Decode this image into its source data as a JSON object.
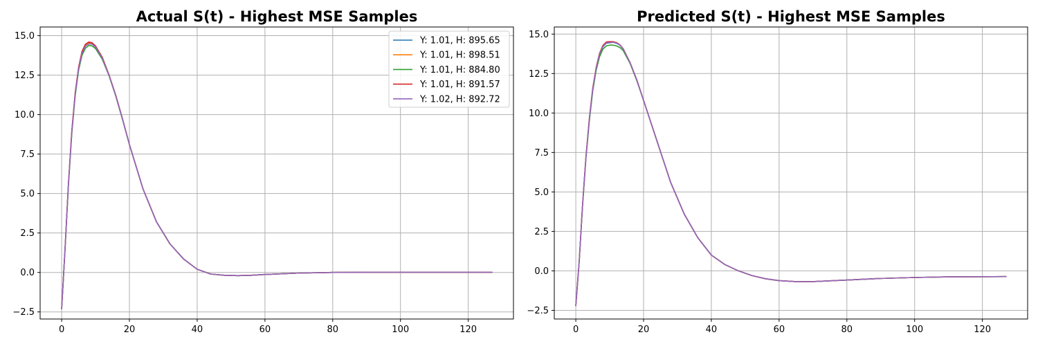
{
  "chart_data": [
    {
      "type": "line",
      "title": "Actual S(t) - Highest MSE Samples",
      "xlabel": "",
      "ylabel": "",
      "xlim": [
        -6.35,
        133.35
      ],
      "ylim": [
        -2.95,
        15.55
      ],
      "xticks": [
        0,
        20,
        40,
        60,
        80,
        100,
        120
      ],
      "xtick_labels": [
        "0",
        "20",
        "40",
        "60",
        "80",
        "100",
        "120"
      ],
      "yticks": [
        -2.5,
        0.0,
        2.5,
        5.0,
        7.5,
        10.0,
        12.5,
        15.0
      ],
      "ytick_labels": [
        "−2.5",
        "0.0",
        "2.5",
        "5.0",
        "7.5",
        "10.0",
        "12.5",
        "15.0"
      ],
      "grid": true,
      "legend_location": "top-right",
      "series": [
        {
          "name": "Y: 1.01, H: 895.65",
          "color": "#1f77b4",
          "x": [
            0,
            1,
            2,
            3,
            4,
            5,
            6,
            7,
            8,
            9,
            10,
            12,
            14,
            16,
            18,
            20,
            24,
            28,
            32,
            36,
            40,
            44,
            48,
            52,
            56,
            60,
            70,
            80,
            90,
            100,
            110,
            120,
            127
          ],
          "y": [
            -2.3,
            1.5,
            5.6,
            8.9,
            11.3,
            12.9,
            13.9,
            14.35,
            14.5,
            14.48,
            14.3,
            13.6,
            12.5,
            11.2,
            9.7,
            8.1,
            5.3,
            3.2,
            1.8,
            0.85,
            0.2,
            -0.1,
            -0.18,
            -0.2,
            -0.18,
            -0.13,
            -0.04,
            0.0,
            0.01,
            0.01,
            0.01,
            0.01,
            0.01
          ]
        },
        {
          "name": "Y: 1.01, H: 898.51",
          "color": "#ff7f0e",
          "x": [
            0,
            1,
            2,
            3,
            4,
            5,
            6,
            7,
            8,
            9,
            10,
            12,
            14,
            16,
            18,
            20,
            24,
            28,
            32,
            36,
            40,
            44,
            48,
            52,
            56,
            60,
            70,
            80,
            90,
            100,
            110,
            120,
            127
          ],
          "y": [
            -2.3,
            1.5,
            5.6,
            8.95,
            11.35,
            12.95,
            13.95,
            14.4,
            14.55,
            14.52,
            14.33,
            13.62,
            12.5,
            11.2,
            9.7,
            8.1,
            5.3,
            3.2,
            1.8,
            0.85,
            0.2,
            -0.1,
            -0.18,
            -0.2,
            -0.18,
            -0.13,
            -0.04,
            0.0,
            0.01,
            0.01,
            0.01,
            0.01,
            0.01
          ]
        },
        {
          "name": "Y: 1.01, H: 884.80",
          "color": "#2ca02c",
          "x": [
            0,
            1,
            2,
            3,
            4,
            5,
            6,
            7,
            8,
            9,
            10,
            12,
            14,
            16,
            18,
            20,
            24,
            28,
            32,
            36,
            40,
            44,
            48,
            52,
            56,
            60,
            70,
            80,
            90,
            100,
            110,
            120,
            127
          ],
          "y": [
            -2.3,
            1.45,
            5.5,
            8.8,
            11.2,
            12.8,
            13.75,
            14.2,
            14.38,
            14.35,
            14.18,
            13.5,
            12.45,
            11.15,
            9.65,
            8.1,
            5.3,
            3.2,
            1.8,
            0.85,
            0.2,
            -0.1,
            -0.18,
            -0.2,
            -0.18,
            -0.13,
            -0.04,
            0.0,
            0.01,
            0.01,
            0.01,
            0.01,
            0.01
          ]
        },
        {
          "name": "Y: 1.01, H: 891.57",
          "color": "#d62728",
          "x": [
            0,
            1,
            2,
            3,
            4,
            5,
            6,
            7,
            8,
            9,
            10,
            12,
            14,
            16,
            18,
            20,
            24,
            28,
            32,
            36,
            40,
            44,
            48,
            52,
            56,
            60,
            70,
            80,
            90,
            100,
            110,
            120,
            127
          ],
          "y": [
            -2.3,
            1.5,
            5.62,
            8.98,
            11.4,
            13.0,
            14.0,
            14.45,
            14.6,
            14.55,
            14.35,
            13.63,
            12.5,
            11.2,
            9.7,
            8.1,
            5.3,
            3.2,
            1.8,
            0.85,
            0.2,
            -0.1,
            -0.18,
            -0.2,
            -0.18,
            -0.13,
            -0.04,
            0.0,
            0.01,
            0.01,
            0.01,
            0.01,
            0.01
          ]
        },
        {
          "name": "Y: 1.02, H: 892.72",
          "color": "#9467bd",
          "x": [
            0,
            1,
            2,
            3,
            4,
            5,
            6,
            7,
            8,
            9,
            10,
            12,
            14,
            16,
            18,
            20,
            24,
            28,
            32,
            36,
            40,
            44,
            48,
            52,
            56,
            60,
            70,
            80,
            90,
            100,
            110,
            120,
            127
          ],
          "y": [
            -2.3,
            1.5,
            5.58,
            8.92,
            11.3,
            12.9,
            13.88,
            14.33,
            14.48,
            14.46,
            14.28,
            13.58,
            12.48,
            11.18,
            9.68,
            8.1,
            5.3,
            3.2,
            1.8,
            0.85,
            0.2,
            -0.1,
            -0.18,
            -0.2,
            -0.18,
            -0.13,
            -0.04,
            0.0,
            0.01,
            0.01,
            0.01,
            0.01,
            0.01
          ]
        }
      ]
    },
    {
      "type": "line",
      "title": "Predicted S(t) - Highest MSE Samples",
      "xlabel": "",
      "ylabel": "",
      "xlim": [
        -6.35,
        133.35
      ],
      "ylim": [
        -3.05,
        15.45
      ],
      "xticks": [
        0,
        20,
        40,
        60,
        80,
        100,
        120
      ],
      "xtick_labels": [
        "0",
        "20",
        "40",
        "60",
        "80",
        "100",
        "120"
      ],
      "yticks": [
        -2.5,
        0.0,
        2.5,
        5.0,
        7.5,
        10.0,
        12.5,
        15.0
      ],
      "ytick_labels": [
        "−2.5",
        "0.0",
        "2.5",
        "5.0",
        "7.5",
        "10.0",
        "12.5",
        "15.0"
      ],
      "grid": true,
      "series": [
        {
          "name": "Y: 1.01, H: 895.65",
          "color": "#1f77b4",
          "x": [
            0,
            1,
            2,
            3,
            4,
            5,
            6,
            7,
            8,
            9,
            10,
            11,
            12,
            13,
            14,
            16,
            18,
            20,
            22,
            24,
            28,
            32,
            36,
            40,
            44,
            48,
            52,
            56,
            60,
            65,
            70,
            80,
            90,
            100,
            110,
            120,
            127
          ],
          "y": [
            -2.2,
            0.6,
            4.2,
            7.2,
            9.6,
            11.5,
            12.8,
            13.7,
            14.2,
            14.42,
            14.45,
            14.48,
            14.42,
            14.3,
            14.05,
            13.2,
            12.1,
            10.8,
            9.5,
            8.2,
            5.6,
            3.6,
            2.1,
            1.0,
            0.4,
            0.0,
            -0.3,
            -0.5,
            -0.62,
            -0.68,
            -0.68,
            -0.58,
            -0.48,
            -0.42,
            -0.38,
            -0.37,
            -0.36
          ]
        },
        {
          "name": "Y: 1.01, H: 898.51",
          "color": "#ff7f0e",
          "x": [
            0,
            1,
            2,
            3,
            4,
            5,
            6,
            7,
            8,
            9,
            10,
            11,
            12,
            13,
            14,
            16,
            18,
            20,
            22,
            24,
            28,
            32,
            36,
            40,
            44,
            48,
            52,
            56,
            60,
            65,
            70,
            80,
            90,
            100,
            110,
            120,
            127
          ],
          "y": [
            -2.2,
            0.6,
            4.2,
            7.25,
            9.65,
            11.55,
            12.85,
            13.75,
            14.25,
            14.46,
            14.5,
            14.5,
            14.44,
            14.32,
            14.06,
            13.2,
            12.1,
            10.8,
            9.5,
            8.2,
            5.6,
            3.6,
            2.1,
            1.0,
            0.4,
            0.0,
            -0.3,
            -0.5,
            -0.62,
            -0.68,
            -0.68,
            -0.58,
            -0.48,
            -0.42,
            -0.38,
            -0.37,
            -0.36
          ]
        },
        {
          "name": "Y: 1.01, H: 884.80",
          "color": "#2ca02c",
          "x": [
            0,
            1,
            2,
            3,
            4,
            5,
            6,
            7,
            8,
            9,
            10,
            11,
            12,
            13,
            14,
            16,
            18,
            20,
            22,
            24,
            28,
            32,
            36,
            40,
            44,
            48,
            52,
            56,
            60,
            65,
            70,
            80,
            90,
            100,
            110,
            120,
            127
          ],
          "y": [
            -2.2,
            0.6,
            4.15,
            7.15,
            9.5,
            11.4,
            12.7,
            13.55,
            14.05,
            14.25,
            14.3,
            14.3,
            14.25,
            14.15,
            13.95,
            13.15,
            12.05,
            10.8,
            9.5,
            8.2,
            5.6,
            3.6,
            2.1,
            1.0,
            0.4,
            0.0,
            -0.3,
            -0.5,
            -0.62,
            -0.68,
            -0.68,
            -0.58,
            -0.48,
            -0.42,
            -0.38,
            -0.37,
            -0.36
          ]
        },
        {
          "name": "Y: 1.01, H: 891.57",
          "color": "#d62728",
          "x": [
            0,
            1,
            2,
            3,
            4,
            5,
            6,
            7,
            8,
            9,
            10,
            11,
            12,
            13,
            14,
            16,
            18,
            20,
            22,
            24,
            28,
            32,
            36,
            40,
            44,
            48,
            52,
            56,
            60,
            65,
            70,
            80,
            90,
            100,
            110,
            120,
            127
          ],
          "y": [
            -2.2,
            0.6,
            4.22,
            7.25,
            9.68,
            11.58,
            12.88,
            13.78,
            14.28,
            14.5,
            14.52,
            14.52,
            14.46,
            14.33,
            14.07,
            13.2,
            12.1,
            10.8,
            9.5,
            8.2,
            5.6,
            3.6,
            2.1,
            1.0,
            0.4,
            0.0,
            -0.3,
            -0.5,
            -0.62,
            -0.68,
            -0.68,
            -0.58,
            -0.48,
            -0.42,
            -0.38,
            -0.37,
            -0.36
          ]
        },
        {
          "name": "Y: 1.02, H: 892.72",
          "color": "#9467bd",
          "x": [
            0,
            1,
            2,
            3,
            4,
            5,
            6,
            7,
            8,
            9,
            10,
            11,
            12,
            13,
            14,
            16,
            18,
            20,
            22,
            24,
            28,
            32,
            36,
            40,
            44,
            48,
            52,
            56,
            60,
            65,
            70,
            80,
            90,
            100,
            110,
            120,
            127
          ],
          "y": [
            -2.2,
            0.6,
            4.2,
            7.22,
            9.62,
            11.52,
            12.83,
            13.72,
            14.22,
            14.44,
            14.47,
            14.48,
            14.43,
            14.31,
            14.05,
            13.2,
            12.1,
            10.8,
            9.5,
            8.2,
            5.6,
            3.6,
            2.1,
            1.0,
            0.4,
            0.0,
            -0.3,
            -0.5,
            -0.62,
            -0.68,
            -0.68,
            -0.58,
            -0.48,
            -0.42,
            -0.38,
            -0.37,
            -0.36
          ]
        }
      ]
    }
  ]
}
